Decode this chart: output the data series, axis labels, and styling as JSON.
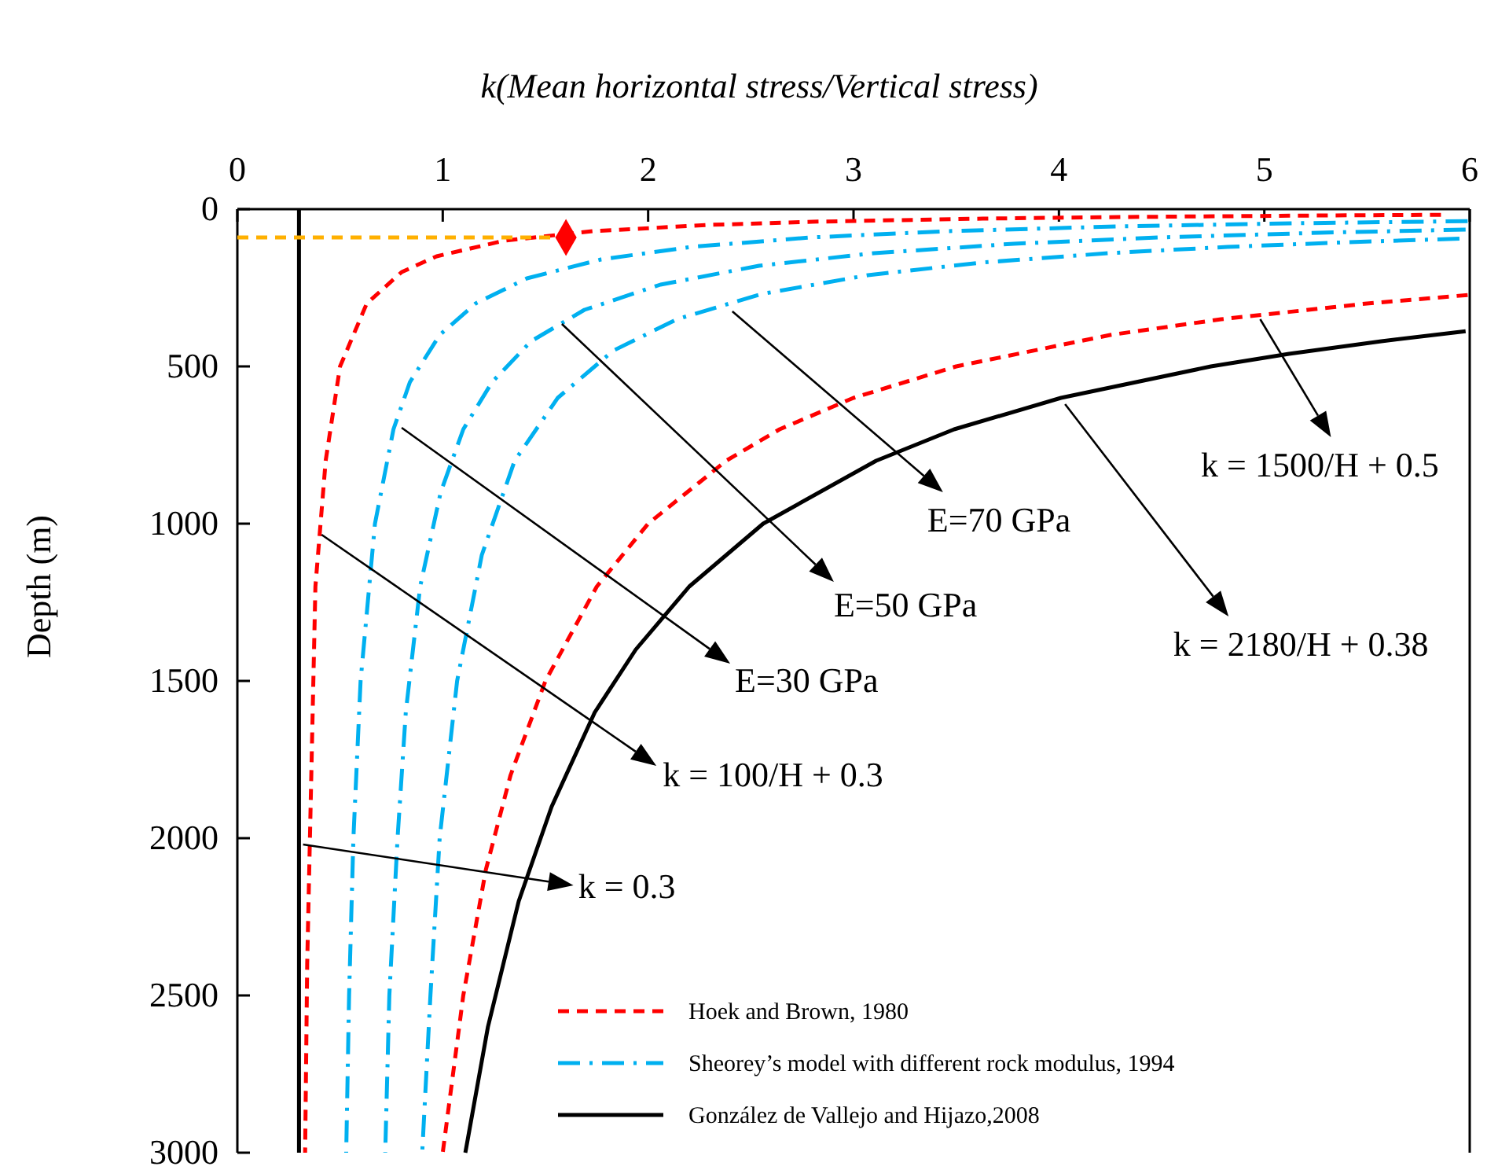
{
  "chart_data": {
    "type": "line",
    "xlabel": "k(Mean horizontal stress/Vertical stress)",
    "ylabel": "Depth (m)",
    "xlim": [
      0,
      6
    ],
    "xticks": [
      0,
      1,
      2,
      3,
      4,
      5,
      6
    ],
    "ylim": [
      3000,
      0
    ],
    "yticks": [
      0,
      500,
      1000,
      1500,
      2000,
      2500,
      3000
    ],
    "grid": false,
    "legend": "bottom right",
    "series": [
      {
        "name": "Hoek and Brown, 1980",
        "color": "#ff0000",
        "line_style": "dashed",
        "x": [
          5.86,
          5.3,
          4.3,
          3.63,
          2.8,
          2.3,
          1.73,
          1.3,
          0.97,
          0.8,
          0.63,
          0.5,
          0.43,
          0.38,
          0.36,
          0.34,
          0.33
        ],
        "values": [
          18,
          20,
          25,
          30,
          40,
          50,
          70,
          100,
          150,
          200,
          300,
          500,
          800,
          1200,
          1800,
          2400,
          3000
        ]
      },
      {
        "color": "#ff0000",
        "line_style": "dashed",
        "x": [
          5.99,
          5.5,
          4.79,
          4.25,
          3.5,
          3.0,
          2.64,
          2.38,
          2.0,
          1.75,
          1.5,
          1.33,
          1.21,
          1.1,
          1.0
        ],
        "values": [
          273,
          300,
          350,
          400,
          500,
          600,
          700,
          800,
          1000,
          1200,
          1500,
          1800,
          2100,
          2500,
          3000
        ]
      },
      {
        "name": "Sheorey’s model with different rock modulus, 1994",
        "color": "#00b0f0",
        "line_style": "dashdot",
        "x": [
          5.99,
          5.13,
          4.28,
          3.46,
          2.79,
          2.21,
          1.77,
          1.41,
          1.16,
          0.985,
          0.84,
          0.76,
          0.67,
          0.6,
          0.565,
          0.544,
          0.53
        ],
        "values": [
          38,
          45,
          55,
          70,
          90,
          120,
          160,
          220,
          300,
          400,
          550,
          700,
          1000,
          1500,
          2000,
          2500,
          3000
        ]
      },
      {
        "color": "#00b0f0",
        "line_style": "dashdot",
        "x": [
          5.98,
          5.27,
          4.49,
          3.78,
          3.1,
          2.54,
          2.06,
          1.69,
          1.43,
          1.24,
          1.1,
          0.99,
          0.89,
          0.82,
          0.78,
          0.74,
          0.72
        ],
        "values": [
          65,
          75,
          90,
          110,
          140,
          180,
          240,
          320,
          420,
          550,
          700,
          900,
          1200,
          1600,
          2000,
          2500,
          3000
        ]
      },
      {
        "color": "#00b0f0",
        "line_style": "dashdot",
        "x": [
          5.95,
          5.41,
          4.82,
          4.24,
          3.62,
          3.07,
          2.55,
          2.14,
          1.83,
          1.56,
          1.35,
          1.19,
          1.07,
          0.985,
          0.94,
          0.9
        ],
        "values": [
          94,
          105,
          120,
          140,
          170,
          210,
          270,
          350,
          450,
          600,
          800,
          1100,
          1500,
          2000,
          2500,
          3000
        ]
      },
      {
        "name": "González de Vallejo and Hijazo,2008",
        "color": "#000000",
        "line_style": "solid",
        "x": [
          5.98,
          5.57,
          5.12,
          4.74,
          4.01,
          3.49,
          3.11,
          2.56,
          2.2,
          1.94,
          1.74,
          1.53,
          1.37,
          1.22,
          1.11
        ],
        "values": [
          388,
          420,
          460,
          500,
          600,
          700,
          800,
          1000,
          1200,
          1400,
          1600,
          1900,
          2200,
          2600,
          3000
        ]
      },
      {
        "color": "#000000",
        "line_style": "solid",
        "x": [
          0.3,
          0.3
        ],
        "values": [
          0,
          3000
        ]
      },
      {
        "color": "#ffb000",
        "line_style": "dashed",
        "x": [
          0,
          1.6
        ],
        "values": [
          90,
          90
        ]
      },
      {
        "type": "scatter",
        "marker": "diamond",
        "color": "#ff0000",
        "x": [
          1.6
        ],
        "values": [
          90
        ]
      }
    ],
    "annotations": [
      {
        "text": "E=70 GPa",
        "x": 2.41,
        "y": 325
      },
      {
        "text": "E=50 GPa",
        "x": 1.58,
        "y": 365
      },
      {
        "text": "E=30 GPa",
        "x": 0.8,
        "y": 695
      },
      {
        "text": "k = 100/H + 0.3",
        "x": 0.41,
        "y": 1035
      },
      {
        "text": "k = 0.3",
        "x": 0.32,
        "y": 2020
      },
      {
        "text": "k = 1500/H + 0.5",
        "x": 4.98,
        "y": 350
      },
      {
        "text": "k = 2180/H + 0.38",
        "x": 4.03,
        "y": 620
      }
    ]
  }
}
